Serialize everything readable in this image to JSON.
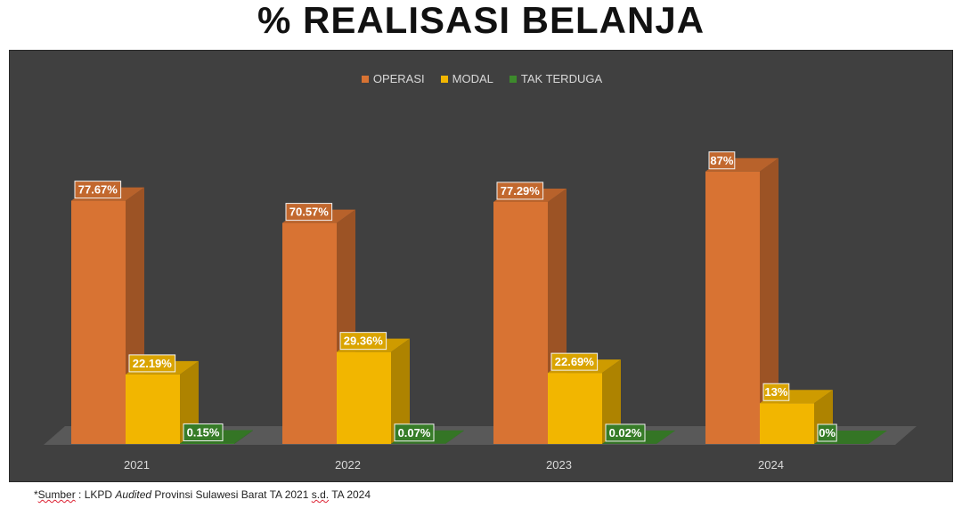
{
  "title": "% REALISASI BELANJA",
  "footnote": {
    "prefix": "*",
    "sumber": "Sumber",
    "sep": " : LKPD ",
    "audited": "Audited",
    "rest1": " Provinsi Sulawesi Barat TA 2021 ",
    "sd": "s.d.",
    "rest2": " TA 2024"
  },
  "chart_data": {
    "type": "bar",
    "categories": [
      "2021",
      "2022",
      "2023",
      "2024"
    ],
    "series": [
      {
        "name": "OPERASI",
        "values": [
          77.67,
          70.57,
          77.29,
          87
        ],
        "labels": [
          "77.67%",
          "70.57%",
          "77.29%",
          "87%"
        ],
        "color": "#d87333"
      },
      {
        "name": "MODAL",
        "values": [
          22.19,
          29.36,
          22.69,
          13
        ],
        "labels": [
          "22.19%",
          "29.36%",
          "22.69%",
          "13%"
        ],
        "color": "#f2b600"
      },
      {
        "name": "TAK TERDUGA",
        "values": [
          0.15,
          0.07,
          0.02,
          0
        ],
        "labels": [
          "0.15%",
          "0.07%",
          "0.02%",
          "0%"
        ],
        "color": "#3d8a2c"
      }
    ],
    "legend_position": "top-center",
    "grid": false,
    "three_d": true
  }
}
